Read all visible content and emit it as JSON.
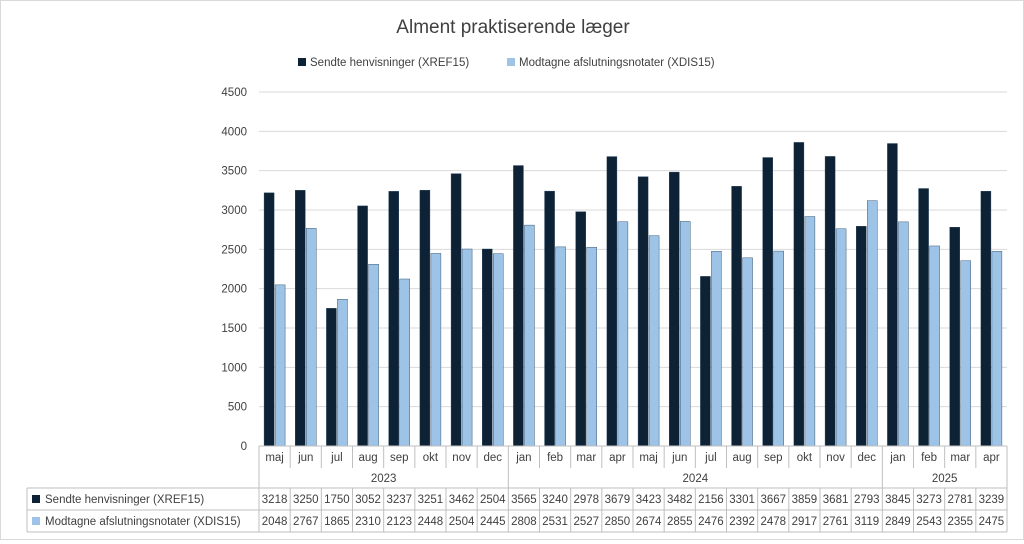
{
  "chart_data": {
    "type": "bar",
    "title": "Alment praktiserende læger",
    "xlabel": "",
    "ylabel": "",
    "ylim": [
      0,
      4500
    ],
    "yticks": [
      0,
      500,
      1000,
      1500,
      2000,
      2500,
      3000,
      3500,
      4000,
      4500
    ],
    "grid": true,
    "legend_position": "top",
    "categories": [
      "maj",
      "jun",
      "jul",
      "aug",
      "sep",
      "okt",
      "nov",
      "dec",
      "jan",
      "feb",
      "mar",
      "apr",
      "maj",
      "jun",
      "jul",
      "aug",
      "sep",
      "okt",
      "nov",
      "dec",
      "jan",
      "feb",
      "mar",
      "apr"
    ],
    "year_groups": [
      {
        "label": "2023",
        "count": 8
      },
      {
        "label": "2024",
        "count": 12
      },
      {
        "label": "2025",
        "count": 4
      }
    ],
    "series": [
      {
        "name": "Sendte henvisninger (XREF15)",
        "color": "#0d2235",
        "values": [
          3218,
          3250,
          1750,
          3052,
          3237,
          3251,
          3462,
          2504,
          3565,
          3240,
          2978,
          3679,
          3423,
          3482,
          2156,
          3301,
          3667,
          3859,
          3681,
          2793,
          3845,
          3273,
          2781,
          3239
        ]
      },
      {
        "name": "Modtagne afslutningsnotater (XDIS15)",
        "color": "#9dc3e6",
        "values": [
          2048,
          2767,
          1865,
          2310,
          2123,
          2448,
          2504,
          2445,
          2808,
          2531,
          2527,
          2850,
          2674,
          2855,
          2476,
          2392,
          2478,
          2917,
          2761,
          3119,
          2849,
          2543,
          2355,
          2475
        ]
      }
    ]
  }
}
